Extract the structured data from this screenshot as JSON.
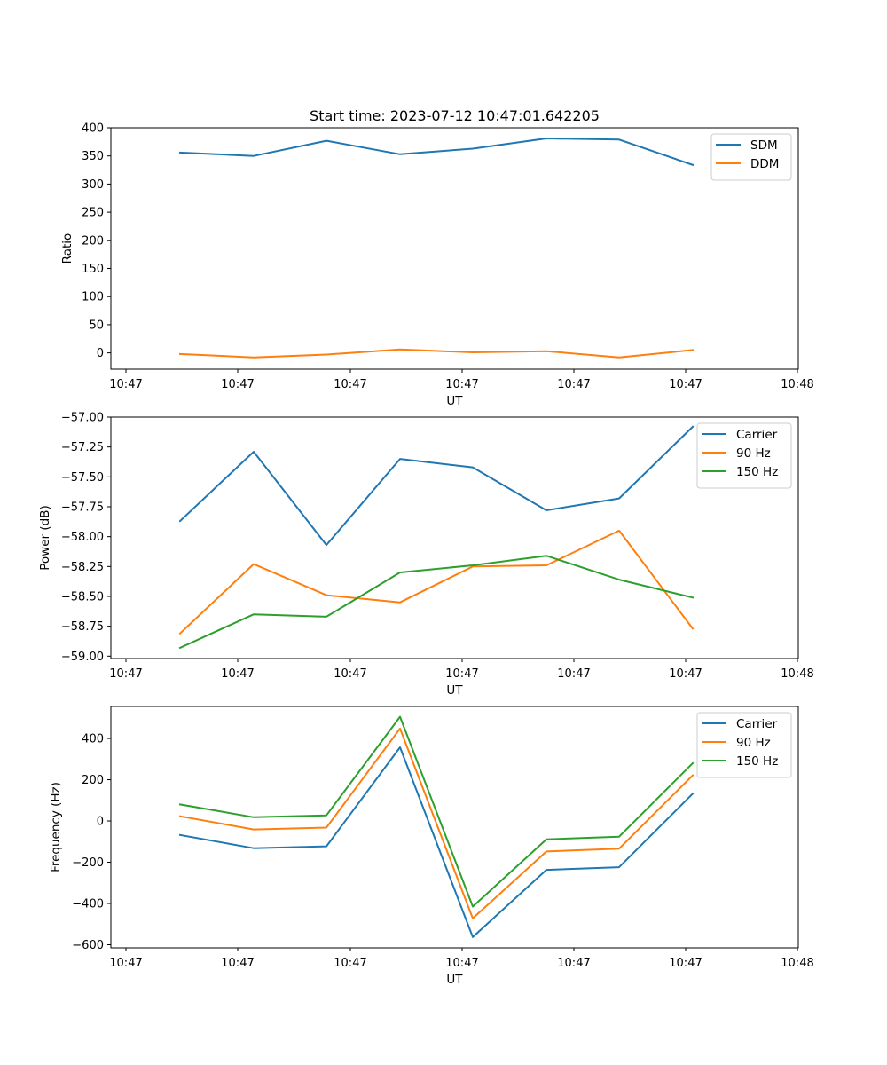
{
  "chart_data": [
    {
      "type": "line",
      "title": "Start time: 2023-07-12 10:47:01.642205",
      "xlabel": "UT",
      "ylabel": "Ratio",
      "x_tick_labels": [
        "10:47",
        "10:47",
        "10:47",
        "10:47",
        "10:47",
        "10:47",
        "10:48"
      ],
      "ylim": [
        -29,
        400
      ],
      "y_ticks": [
        0,
        50,
        100,
        150,
        200,
        250,
        300,
        350,
        400
      ],
      "legend_position": "top-right",
      "series": [
        {
          "name": "SDM",
          "color": "#1f77b4",
          "values": [
            356,
            350,
            377,
            353,
            363,
            381,
            379,
            334
          ]
        },
        {
          "name": "DDM",
          "color": "#ff7f0e",
          "values": [
            -2,
            -8,
            -3,
            6,
            1,
            3,
            -8,
            5
          ]
        }
      ]
    },
    {
      "type": "line",
      "title": "",
      "xlabel": "UT",
      "ylabel": "Power (dB)",
      "x_tick_labels": [
        "10:47",
        "10:47",
        "10:47",
        "10:47",
        "10:47",
        "10:47",
        "10:48"
      ],
      "ylim": [
        -59.02,
        -57.0
      ],
      "y_ticks": [
        -59.0,
        -58.75,
        -58.5,
        -58.25,
        -58.0,
        -57.75,
        -57.5,
        -57.25,
        -57.0
      ],
      "y_tick_labels": [
        "−59.00",
        "−58.75",
        "−58.50",
        "−58.25",
        "−58.00",
        "−57.75",
        "−57.50",
        "−57.25",
        "−57.00"
      ],
      "legend_position": "top-right",
      "series": [
        {
          "name": "Carrier",
          "color": "#1f77b4",
          "values": [
            -57.87,
            -57.29,
            -58.07,
            -57.35,
            -57.42,
            -57.78,
            -57.68,
            -57.08
          ]
        },
        {
          "name": "90 Hz",
          "color": "#ff7f0e",
          "values": [
            -58.81,
            -58.23,
            -58.49,
            -58.55,
            -58.25,
            -58.24,
            -57.95,
            -58.77
          ]
        },
        {
          "name": "150 Hz",
          "color": "#2ca02c",
          "values": [
            -58.93,
            -58.65,
            -58.67,
            -58.3,
            -58.24,
            -58.16,
            -58.36,
            -58.51
          ]
        }
      ]
    },
    {
      "type": "line",
      "title": "",
      "xlabel": "UT",
      "ylabel": "Frequency (Hz)",
      "x_tick_labels": [
        "10:47",
        "10:47",
        "10:47",
        "10:47",
        "10:47",
        "10:47",
        "10:48"
      ],
      "ylim": [
        -615,
        555
      ],
      "y_ticks": [
        -600,
        -400,
        -200,
        0,
        200,
        400
      ],
      "y_tick_labels": [
        "−600",
        "−400",
        "−200",
        "0",
        "200",
        "400"
      ],
      "legend_position": "top-right",
      "series": [
        {
          "name": "Carrier",
          "color": "#1f77b4",
          "values": [
            -68,
            -132,
            -123,
            357,
            -563,
            -237,
            -224,
            132
          ]
        },
        {
          "name": "90 Hz",
          "color": "#ff7f0e",
          "values": [
            23,
            -41,
            -32,
            448,
            -472,
            -148,
            -134,
            221
          ]
        },
        {
          "name": "150 Hz",
          "color": "#2ca02c",
          "values": [
            80,
            18,
            27,
            505,
            -415,
            -89,
            -76,
            280
          ]
        }
      ]
    }
  ]
}
